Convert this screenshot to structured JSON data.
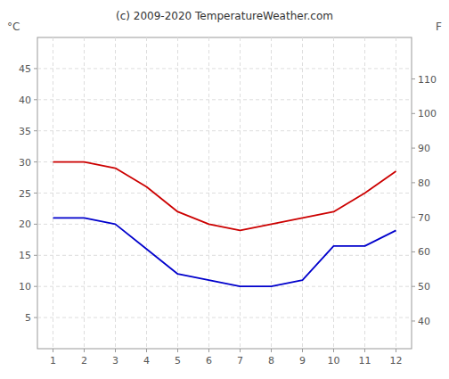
{
  "chart_data": {
    "type": "line",
    "title": "(c) 2009-2020 TemperatureWeather.com",
    "ylabel": "°C",
    "y2label": "F",
    "x": [
      1,
      2,
      3,
      4,
      5,
      6,
      7,
      8,
      9,
      10,
      11,
      12
    ],
    "xlim": [
      0.5,
      12.5
    ],
    "xticks": [
      1,
      2,
      3,
      4,
      5,
      6,
      7,
      8,
      9,
      10,
      11,
      12
    ],
    "series": [
      {
        "color": "#cc0000",
        "values": [
          30,
          30,
          29,
          26,
          22,
          20,
          19,
          20,
          21,
          22,
          25,
          28.5
        ]
      },
      {
        "color": "#0000cc",
        "values": [
          21,
          21,
          20,
          16,
          12,
          11,
          10,
          10,
          11,
          16.5,
          16.5,
          19
        ]
      }
    ],
    "ylim": [
      0,
      50
    ],
    "yticks": [
      5,
      10,
      15,
      20,
      25,
      30,
      35,
      40,
      45
    ],
    "y2lim": [
      32,
      122
    ],
    "y2ticks": [
      40,
      50,
      60,
      70,
      80,
      90,
      100,
      110
    ],
    "grid": true
  }
}
